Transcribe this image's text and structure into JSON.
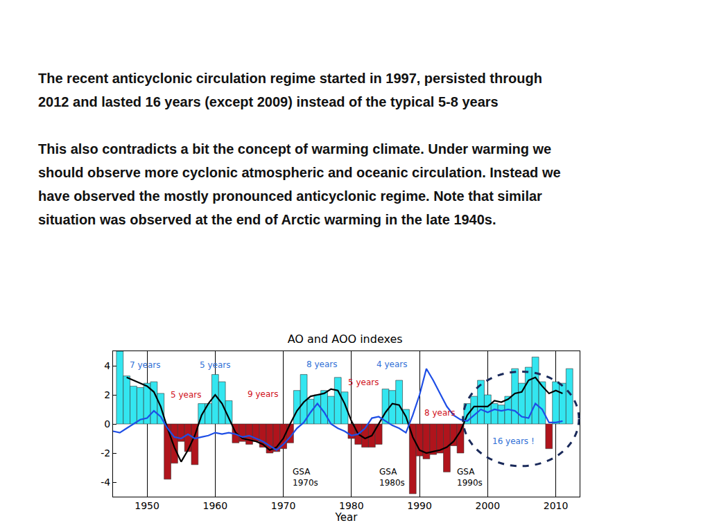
{
  "slide": {
    "paragraphs": [
      [
        "The recent anticyclonic circulation regime started in 1997, persisted through",
        "2012 and lasted 16 years (except 2009) instead of the typical 5-8 years"
      ],
      [
        "This also contradicts a bit the concept of warming climate. Under warming we",
        "should observe more cyclonic atmospheric and oceanic circulation. Instead we",
        "have observed the mostly pronounced anticyclonic regime. Note that similar",
        "situation was observed at the end of Arctic warming  in the late 1940s."
      ]
    ]
  },
  "chart_data": {
    "type": "bar",
    "title": "AO and AOO indexes",
    "xlabel": "Year",
    "grid": true,
    "xlim": [
      1945,
      2013.5
    ],
    "ylim": [
      -5,
      5
    ],
    "xticks": [
      1950,
      1960,
      1970,
      1980,
      1990,
      2000,
      2010
    ],
    "yticks": [
      -4,
      -2,
      0,
      2,
      4
    ],
    "x": [
      1945,
      1946,
      1947,
      1948,
      1949,
      1950,
      1951,
      1952,
      1953,
      1954,
      1955,
      1956,
      1957,
      1958,
      1959,
      1960,
      1961,
      1962,
      1963,
      1964,
      1965,
      1966,
      1967,
      1968,
      1969,
      1970,
      1971,
      1972,
      1973,
      1974,
      1975,
      1976,
      1977,
      1978,
      1979,
      1980,
      1981,
      1982,
      1983,
      1984,
      1985,
      1986,
      1987,
      1988,
      1989,
      1990,
      1991,
      1992,
      1993,
      1994,
      1995,
      1996,
      1997,
      1998,
      1999,
      2000,
      2001,
      2002,
      2003,
      2004,
      2005,
      2006,
      2007,
      2008,
      2009,
      2010,
      2011,
      2012
    ],
    "series": [
      {
        "type": "bar",
        "values": [
          null,
          5.0,
          3.3,
          2.6,
          2.5,
          2.8,
          2.9,
          2.1,
          -3.8,
          -2.7,
          -1.2,
          -1.9,
          -2.8,
          1.4,
          1.4,
          3.4,
          2.9,
          1.6,
          -1.3,
          -1.2,
          -1.4,
          -1.2,
          -1.6,
          -2.0,
          -1.9,
          -1.7,
          -1.3,
          2.3,
          3.4,
          1.7,
          2.0,
          2.3,
          1.9,
          3.2,
          2.2,
          -1.0,
          -1.4,
          -1.6,
          -1.6,
          -1.4,
          2.4,
          2.3,
          3.0,
          1.0,
          -4.8,
          -2.2,
          -2.4,
          -2.1,
          -2.0,
          -3.3,
          -1.5,
          -2.0,
          1.4,
          1.9,
          3.0,
          2.0,
          1.4,
          1.3,
          1.9,
          3.8,
          2.8,
          3.9,
          4.6,
          2.9,
          -1.7,
          2.9,
          2.8,
          3.8
        ],
        "colors": [
          null,
          "#33e6f0",
          "#33e6f0",
          "#33e6f0",
          "#33e6f0",
          "#33e6f0",
          "#33e6f0",
          "#33e6f0",
          "#b0141c",
          "#b0141c",
          "#b0141c",
          "#b0141c",
          "#b0141c",
          "#33e6f0",
          "#33e6f0",
          "#33e6f0",
          "#33e6f0",
          "#33e6f0",
          "#b0141c",
          "#b0141c",
          "#b0141c",
          "#b0141c",
          "#b0141c",
          "#b0141c",
          "#b0141c",
          "#b0141c",
          "#b0141c",
          "#33e6f0",
          "#33e6f0",
          "#33e6f0",
          "#33e6f0",
          "#33e6f0",
          "#33e6f0",
          "#33e6f0",
          "#33e6f0",
          "#b0141c",
          "#b0141c",
          "#b0141c",
          "#b0141c",
          "#b0141c",
          "#33e6f0",
          "#33e6f0",
          "#33e6f0",
          "#33e6f0",
          "#b0141c",
          "#b0141c",
          "#b0141c",
          "#b0141c",
          "#b0141c",
          "#b0141c",
          "#b0141c",
          "#b0141c",
          "#33e6f0",
          "#33e6f0",
          "#33e6f0",
          "#33e6f0",
          "#33e6f0",
          "#33e6f0",
          "#33e6f0",
          "#33e6f0",
          "#33e6f0",
          "#33e6f0",
          "#33e6f0",
          "#33e6f0",
          "#b0141c",
          "#33e6f0",
          "#33e6f0",
          "#33e6f0"
        ]
      },
      {
        "type": "line",
        "color": "#000000",
        "line_style": "solid",
        "values": [
          null,
          null,
          3.2,
          3.0,
          2.8,
          2.6,
          2.2,
          1.2,
          -0.3,
          -1.6,
          -2.6,
          -1.8,
          -0.8,
          0.6,
          1.4,
          2.0,
          1.4,
          0.4,
          -0.6,
          -1.0,
          -1.1,
          -1.2,
          -1.4,
          -1.8,
          -1.6,
          -1.0,
          0.0,
          0.9,
          1.5,
          1.9,
          2.0,
          2.1,
          2.4,
          2.3,
          1.4,
          0.2,
          -0.7,
          -1.0,
          -0.8,
          0.0,
          0.8,
          1.4,
          1.3,
          0.5,
          -0.9,
          -1.8,
          -2.0,
          -1.9,
          -1.8,
          -1.6,
          -1.2,
          -0.5,
          0.6,
          1.2,
          1.2,
          1.2,
          1.6,
          1.5,
          1.7,
          2.1,
          2.2,
          3.0,
          3.2,
          2.6,
          2.1,
          2.3,
          2.1,
          null
        ]
      },
      {
        "type": "line",
        "color": "#1e4ee6",
        "line_style": "solid",
        "values": [
          -0.5,
          -0.6,
          -0.3,
          0.0,
          0.3,
          0.4,
          0.9,
          0.5,
          -0.3,
          -0.9,
          -1.0,
          -0.7,
          -1.0,
          -0.9,
          -0.8,
          -0.6,
          -0.7,
          -0.6,
          -0.7,
          -0.9,
          -0.8,
          -1.0,
          -1.2,
          -1.5,
          -1.8,
          -1.4,
          -0.9,
          -0.3,
          0.1,
          0.8,
          1.4,
          0.8,
          0.0,
          -0.3,
          -0.5,
          -0.8,
          -0.7,
          -0.3,
          0.4,
          0.5,
          0.2,
          -0.1,
          -0.3,
          -0.6,
          0.6,
          2.0,
          3.8,
          3.0,
          2.1,
          1.2,
          0.6,
          0.3,
          0.2,
          0.6,
          1.0,
          0.8,
          1.0,
          0.9,
          1.0,
          0.9,
          0.5,
          0.4,
          1.4,
          1.0,
          0.1,
          0.1,
          0.2,
          null
        ]
      }
    ],
    "annotations": [
      {
        "text": "7 years",
        "x": 1949.7,
        "y": 4.05,
        "color": "#2f6fd6"
      },
      {
        "text": "5 years",
        "x": 1955.7,
        "y": 2.0,
        "color": "#d0101a"
      },
      {
        "text": "5 years",
        "x": 1960.0,
        "y": 4.05,
        "color": "#2f6fd6"
      },
      {
        "text": "9 years",
        "x": 1967.0,
        "y": 2.05,
        "color": "#d0101a"
      },
      {
        "text": "8 years",
        "x": 1975.6,
        "y": 4.1,
        "color": "#2f6fd6"
      },
      {
        "text": "5 years",
        "x": 1981.7,
        "y": 2.85,
        "color": "#d0101a"
      },
      {
        "text": "4 years",
        "x": 1985.9,
        "y": 4.1,
        "color": "#2f6fd6"
      },
      {
        "text": "8 years",
        "x": 1992.9,
        "y": 0.76,
        "color": "#d0101a"
      },
      {
        "text": "16 years !",
        "x": 2003.8,
        "y": -1.2,
        "color": "#2f6fd6"
      },
      {
        "text": "GSA\n1970s",
        "x": 1973.2,
        "y": -3.67,
        "color": "#000000"
      },
      {
        "text": "GSA\n1980s",
        "x": 1986.0,
        "y": -3.67,
        "color": "#000000"
      },
      {
        "text": "GSA\n1990s",
        "x": 1997.4,
        "y": -3.67,
        "color": "#000000"
      }
    ]
  }
}
